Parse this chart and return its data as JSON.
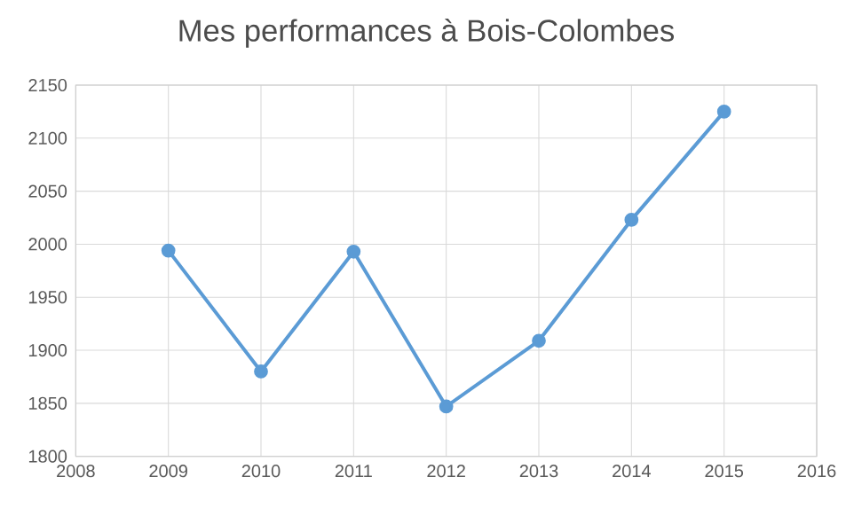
{
  "chart_data": {
    "type": "line",
    "title": "Mes performances à Bois-Colombes",
    "x": [
      2009,
      2010,
      2011,
      2012,
      2013,
      2014,
      2015
    ],
    "series": [
      {
        "color": "#5b9bd5",
        "values": [
          1994,
          1880,
          1993,
          1847,
          1909,
          2023,
          2125
        ]
      }
    ],
    "xlim": [
      2008,
      2016
    ],
    "xticks": [
      2008,
      2009,
      2010,
      2011,
      2012,
      2013,
      2014,
      2015,
      2016
    ],
    "ylim": [
      1800,
      2150
    ],
    "yticks": [
      1800,
      1850,
      1900,
      1950,
      2000,
      2050,
      2100,
      2150
    ],
    "grid": true,
    "marker": "circle",
    "line_style": "solid"
  }
}
